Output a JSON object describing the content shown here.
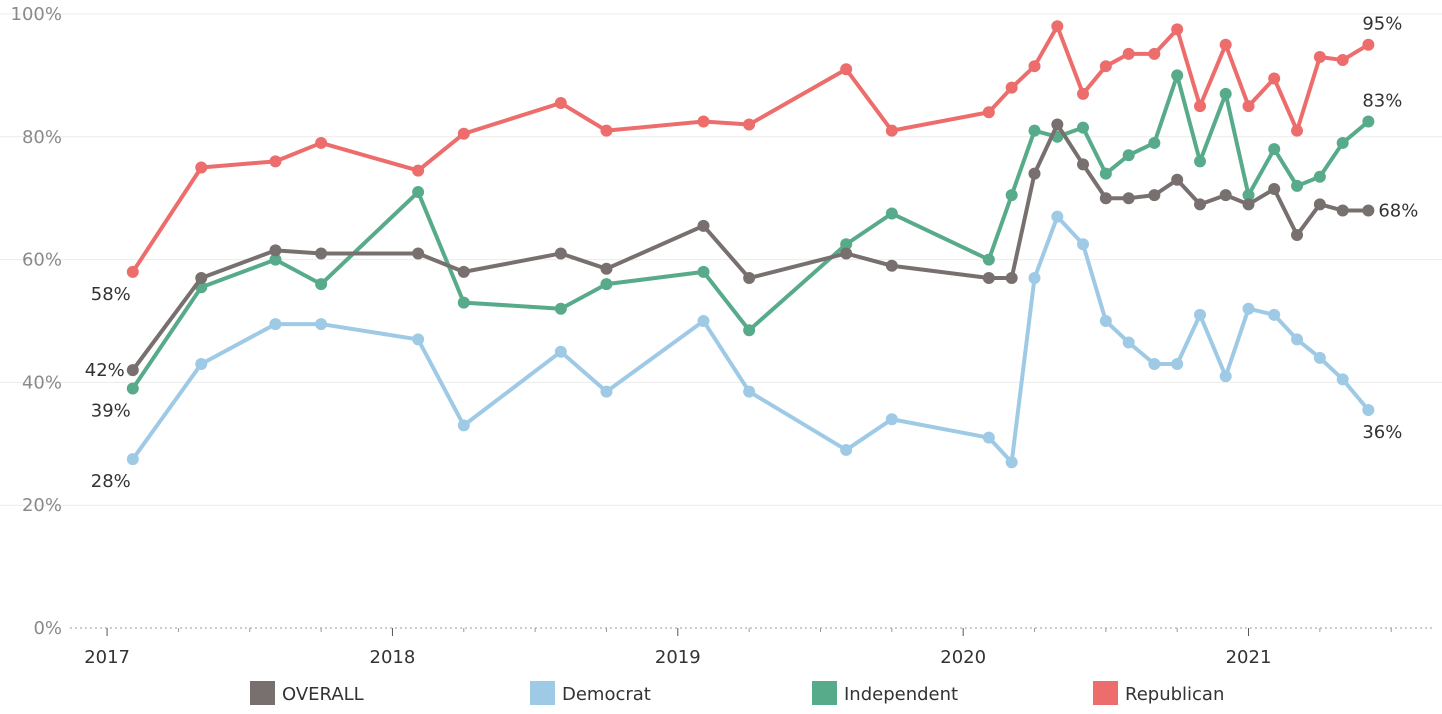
{
  "chart_data": {
    "type": "line",
    "title": "",
    "xlabel": "",
    "ylabel": "",
    "ylim": [
      0,
      100
    ],
    "y_ticks": [
      "0%",
      "20%",
      "40%",
      "60%",
      "80%",
      "100%"
    ],
    "x_ticks": [
      {
        "label": "2017",
        "x": 2017.0
      },
      {
        "label": "2018",
        "x": 2018.0
      },
      {
        "label": "2019",
        "x": 2019.0
      },
      {
        "label": "2020",
        "x": 2020.0
      },
      {
        "label": "2021",
        "x": 2021.0
      }
    ],
    "xlim": [
      2016.87,
      2021.65
    ],
    "x": [
      2017.09,
      2017.33,
      2017.59,
      2017.75,
      2018.09,
      2018.25,
      2018.59,
      2018.75,
      2019.09,
      2019.25,
      2019.59,
      2019.75,
      2020.09,
      2020.17,
      2020.25,
      2020.33,
      2020.42,
      2020.5,
      2020.58,
      2020.67,
      2020.75,
      2020.83,
      2020.92,
      2021.0,
      2021.09,
      2021.17,
      2021.25,
      2021.33,
      2021.42
    ],
    "grid": true,
    "legend": "bottom",
    "series": [
      {
        "name": "OVERALL",
        "color": "#78706e",
        "values": [
          42,
          57,
          61.5,
          61,
          61,
          58,
          61,
          58.5,
          65.5,
          57,
          61,
          59,
          57,
          57,
          74,
          82,
          75.5,
          70,
          70,
          70.5,
          73,
          69,
          70.5,
          69,
          71.5,
          64,
          69,
          68,
          68
        ],
        "first_label": "42%",
        "last_label": "68%"
      },
      {
        "name": "Democrat",
        "color": "#9ecae6",
        "values": [
          27.5,
          43,
          49.5,
          49.5,
          47,
          33,
          45,
          38.5,
          50,
          38.5,
          29,
          34,
          31,
          27,
          57,
          67,
          62.5,
          50,
          46.5,
          43,
          43,
          51,
          41,
          52,
          51,
          47,
          44,
          40.5,
          35.5
        ],
        "first_label": "28%",
        "last_label": "36%"
      },
      {
        "name": "Independent",
        "color": "#58ab8a",
        "values": [
          39,
          55.5,
          60,
          56,
          71,
          53,
          52,
          56,
          58,
          48.5,
          62.5,
          67.5,
          60,
          70.5,
          81,
          80,
          81.5,
          74,
          77,
          79,
          90,
          76,
          87,
          70.5,
          78,
          72,
          73.5,
          79,
          82.5
        ],
        "first_label": "39%",
        "last_label": "83%"
      },
      {
        "name": "Republican",
        "color": "#ec6d6b",
        "values": [
          58,
          75,
          76,
          79,
          74.5,
          80.5,
          85.5,
          81,
          82.5,
          82,
          91,
          81,
          84,
          88,
          91.5,
          98,
          87,
          91.5,
          93.5,
          93.5,
          97.5,
          85,
          95,
          85,
          89.5,
          81,
          93,
          92.5,
          95
        ],
        "first_label": "58%",
        "last_label": "95%"
      }
    ]
  }
}
